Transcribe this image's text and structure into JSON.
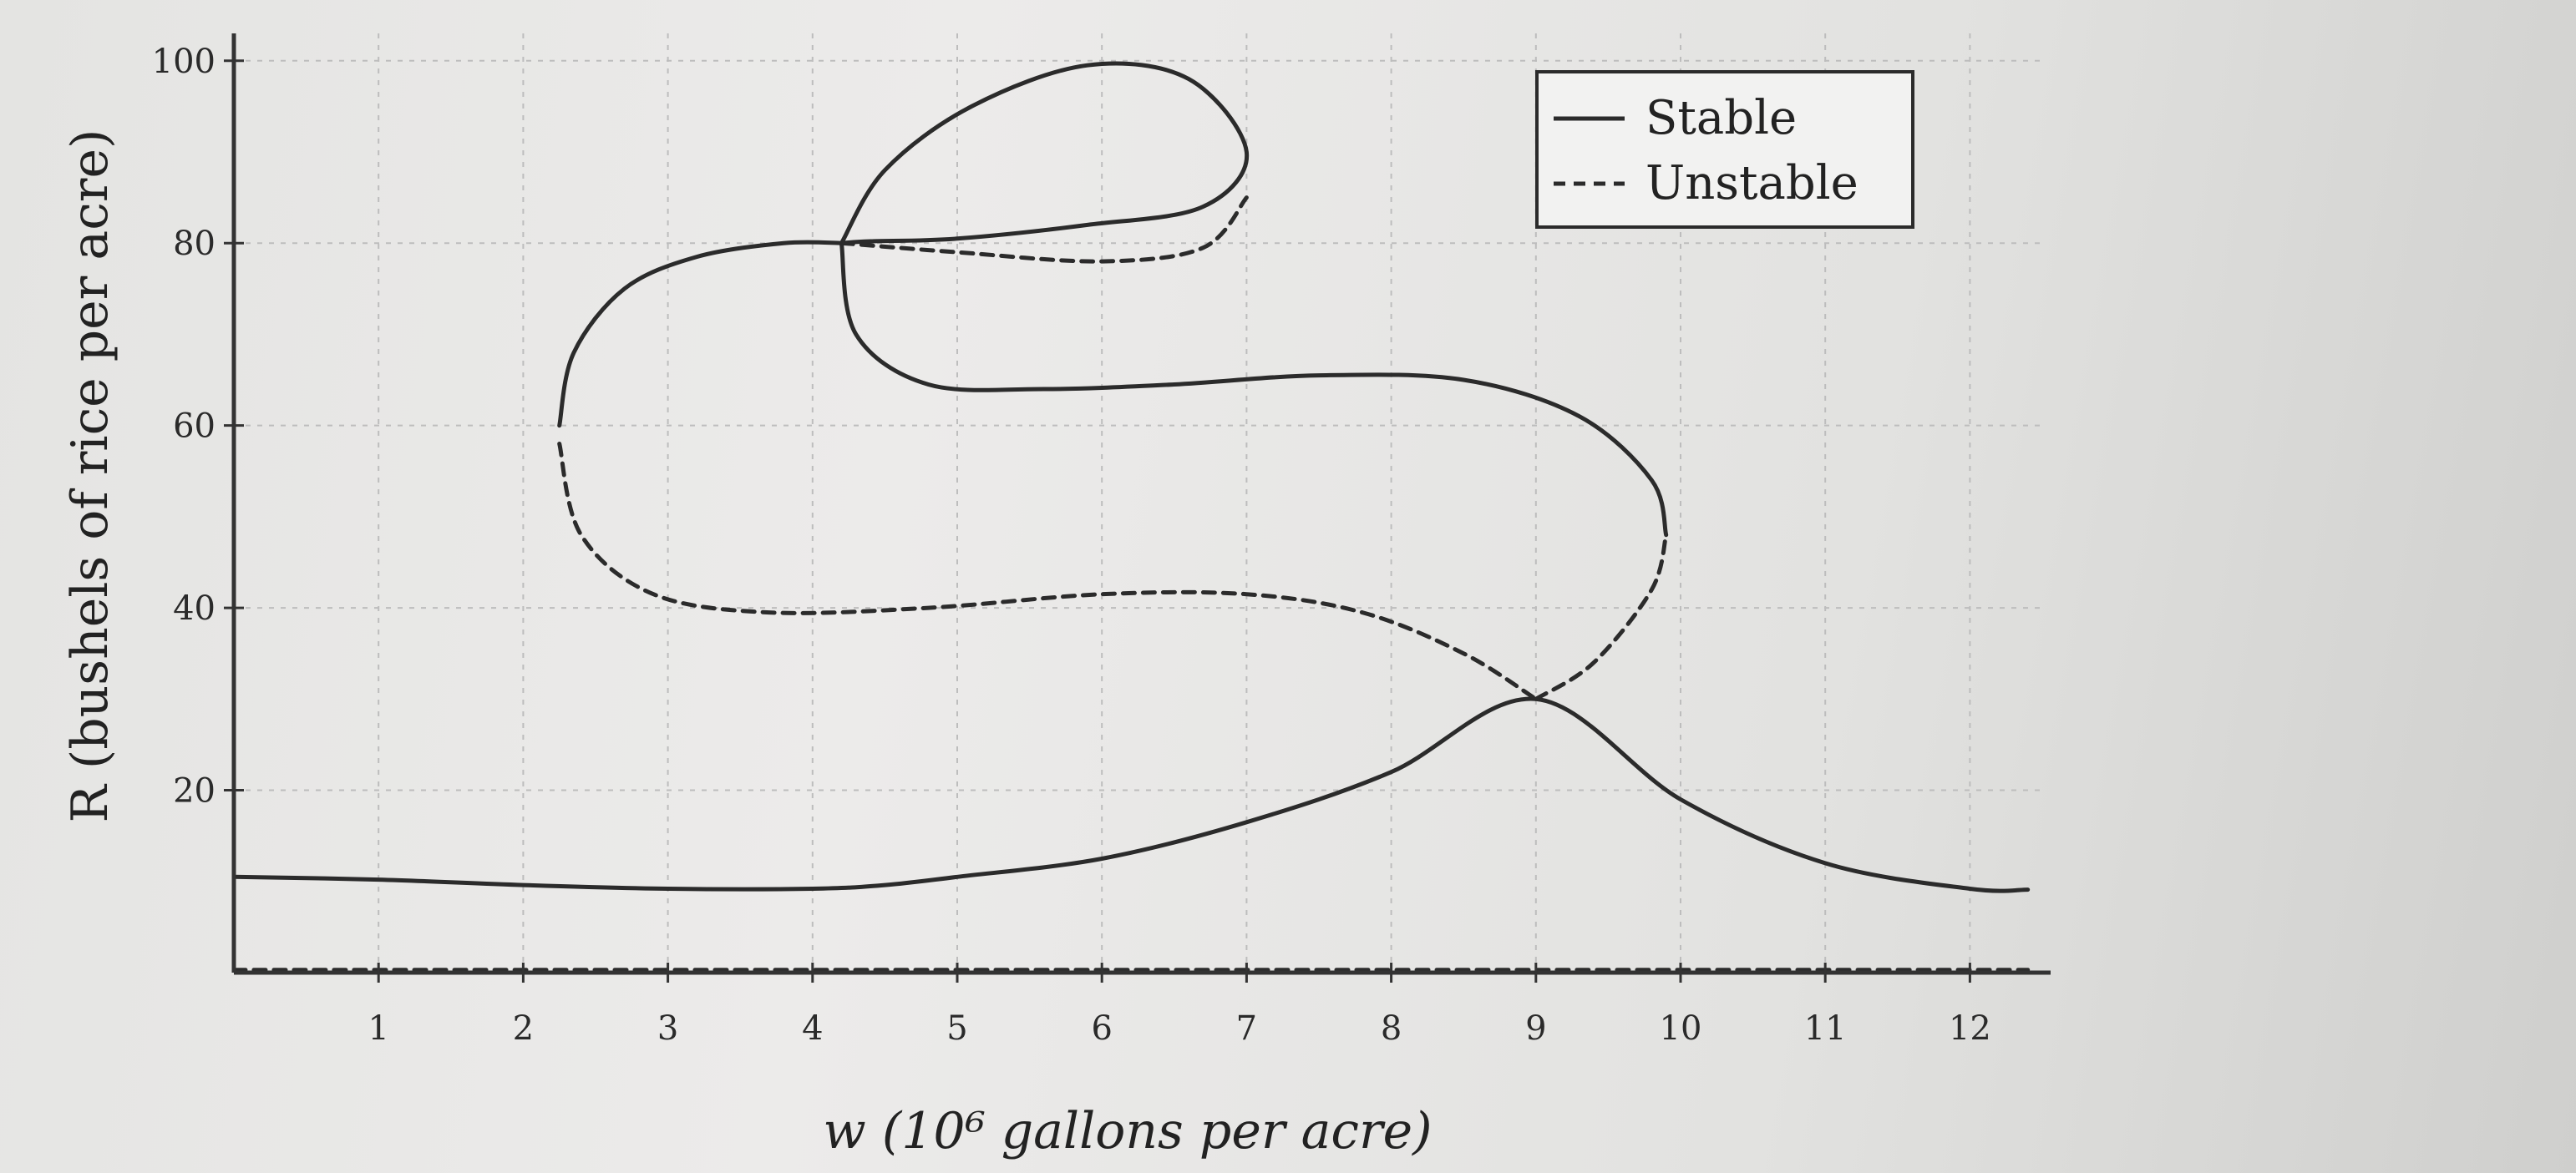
{
  "chart_data": {
    "type": "line",
    "xlabel": "w (10⁶ gallons per acre)",
    "ylabel": "R (bushels of rice per acre)",
    "xlim": [
      0,
      12.5
    ],
    "ylim": [
      0,
      103
    ],
    "xticks": [
      1,
      2,
      3,
      4,
      5,
      6,
      7,
      8,
      9,
      10,
      11,
      12
    ],
    "yticks": [
      20,
      40,
      60,
      80,
      100
    ],
    "grid": true,
    "legend_position": "top-right",
    "series": [
      {
        "name": "Stable",
        "style": "solid",
        "segments": [
          {
            "x": [
              0,
              1,
              2,
              3,
              4,
              4.5,
              5,
              6,
              7,
              8,
              9,
              10,
              11,
              12,
              12.4
            ],
            "y": [
              10.5,
              10.2,
              9.6,
              9.2,
              9.2,
              9.6,
              10.5,
              12.5,
              16.5,
              22,
              30,
              19,
              12,
              9.2,
              9.1
            ]
          },
          {
            "x": [
              2.25,
              2.35,
              2.7,
              3.2,
              3.8,
              4.2
            ],
            "y": [
              60,
              68,
              75,
              78.5,
              80,
              80
            ]
          },
          {
            "x": [
              4.2,
              4.5,
              5.1,
              5.9,
              6.6,
              7.0,
              6.7,
              5.9,
              5.0,
              4.4,
              4.2
            ],
            "y": [
              80,
              88,
              95,
              99.5,
              98,
              90,
              84,
              82,
              80.5,
              80.2,
              80
            ]
          },
          {
            "x": [
              4.2,
              4.3,
              4.8,
              5.6,
              6.5,
              7.5,
              8.5,
              9.3,
              9.8,
              9.9
            ],
            "y": [
              80,
              70,
              64.5,
              64,
              64.5,
              65.5,
              65,
              61,
              54,
              48
            ]
          }
        ]
      },
      {
        "name": "Unstable",
        "style": "dashed",
        "segments": [
          {
            "x": [
              0,
              2,
              4,
              6,
              8,
              10,
              12.4
            ],
            "y": [
              0.3,
              0.3,
              0.3,
              0.3,
              0.3,
              0.3,
              0.3
            ]
          },
          {
            "x": [
              2.25,
              2.4,
              2.9,
              3.7,
              4.8,
              6.0,
              7.0,
              7.8,
              8.5,
              9.0
            ],
            "y": [
              58,
              48,
              41.5,
              39.5,
              40,
              41.5,
              41.5,
              39.5,
              35,
              30
            ]
          },
          {
            "x": [
              9.0,
              9.4,
              9.8,
              9.9
            ],
            "y": [
              30,
              34,
              42,
              48
            ]
          },
          {
            "x": [
              4.2,
              5.0,
              6.0,
              6.7,
              7.0
            ],
            "y": [
              80,
              79,
              78,
              79.5,
              85
            ]
          }
        ]
      }
    ],
    "colors": {
      "line": "#2b2b2b",
      "grid": "#bdbdbd",
      "axis": "#333333"
    }
  }
}
